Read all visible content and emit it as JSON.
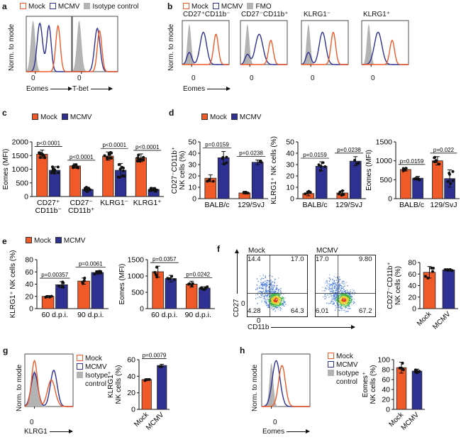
{
  "colors": {
    "mock": "#f05a28",
    "mcmv": "#2e3192",
    "isotype": "#b3b3b3"
  },
  "panels": {
    "a": {
      "label": "a",
      "legend": [
        "Mock",
        "MCMV",
        "Isotype control"
      ],
      "ylabel": "Norm. to mode",
      "zero": "0",
      "xlabels": [
        "Eomes",
        "T-bet"
      ]
    },
    "b": {
      "label": "b",
      "legend": [
        "Mock",
        "MCMV",
        "FMO"
      ],
      "ylabel": "Norm. to mode",
      "zero": "0",
      "titles": [
        "CD27⁺CD11b⁻",
        "CD27⁻CD11b⁺",
        "KLRG1⁻",
        "KLRG1⁺"
      ],
      "xlabel": "Eomes"
    },
    "c": {
      "label": "c",
      "legend": [
        "Mock",
        "MCMV"
      ]
    },
    "d": {
      "label": "d",
      "legend": [
        "Mock",
        "MCMV"
      ]
    },
    "e": {
      "label": "e",
      "legend": [
        "Mock",
        "MCMV"
      ]
    },
    "f": {
      "label": "f",
      "plots": [
        {
          "title": "Mock",
          "quadrants": {
            "ul": "14.4",
            "ur": "17.0",
            "ll": "4.28",
            "lr": "64.3"
          }
        },
        {
          "title": "MCMV",
          "quadrants": {
            "ul": "17.0",
            "ur": "9.80",
            "ll": "6.01",
            "lr": "67.2"
          }
        }
      ],
      "ylabel": "CD27",
      "xlabel": "CD11b",
      "zero": "0"
    },
    "g": {
      "label": "g",
      "legend": [
        "Mock",
        "MCMV",
        "Isotype",
        "control"
      ],
      "ylabel": "Norm. to mode",
      "zero": "0",
      "xlabel": "KLRG1"
    },
    "h": {
      "label": "h",
      "legend": [
        "Mock",
        "MCMV",
        "Isotype",
        "control"
      ],
      "ylabel": "Norm. to mode",
      "zero": "0",
      "xlabel": "Eomes"
    }
  },
  "chart_data": [
    {
      "id": "c",
      "type": "bar",
      "ylabel": "Eomes (MFI)",
      "ylim": [
        0,
        2000
      ],
      "yticks": [
        0,
        500,
        1000,
        1500,
        2000
      ],
      "categories": [
        [
          "CD27⁺",
          "CD11b⁻"
        ],
        [
          "CD27⁻",
          "CD11b⁺"
        ],
        [
          "KLRG1⁻"
        ],
        [
          "KLRG1⁺"
        ]
      ],
      "series": [
        {
          "name": "Mock",
          "values": [
            1550,
            1120,
            1480,
            1420
          ],
          "errors": [
            150,
            80,
            150,
            140
          ],
          "n": [
            9,
            9,
            9,
            9
          ]
        },
        {
          "name": "MCMV",
          "values": [
            960,
            260,
            960,
            260
          ],
          "errors": [
            130,
            80,
            250,
            70
          ],
          "n": [
            9,
            9,
            10,
            9
          ]
        }
      ],
      "pvalues": [
        "p<0.0001",
        "p<0.0001",
        "p<0.0001",
        "p<0.0001"
      ]
    },
    {
      "id": "d1",
      "type": "bar",
      "ylabel": [
        "CD27⁻CD11b⁺",
        "NK cells (%)"
      ],
      "ylim": [
        0,
        50
      ],
      "yticks": [
        0,
        10,
        20,
        30,
        40,
        50
      ],
      "categories": [
        [
          "BALB/c"
        ],
        [
          "129/SvJ"
        ]
      ],
      "series": [
        {
          "name": "Mock",
          "values": [
            18,
            5
          ],
          "errors": [
            3,
            0.8
          ],
          "n": [
            4,
            5
          ]
        },
        {
          "name": "MCMV",
          "values": [
            36,
            32
          ],
          "errors": [
            5.5,
            2
          ],
          "n": [
            5,
            3
          ]
        }
      ],
      "pvalues": [
        "p=0.0159",
        "p=0.0238"
      ]
    },
    {
      "id": "d2",
      "type": "bar",
      "ylabel": [
        "KLRG1⁺ NK cells (%)"
      ],
      "ylim": [
        0,
        50
      ],
      "yticks": [
        0,
        10,
        20,
        30,
        40,
        50
      ],
      "categories": [
        [
          "BALB/c"
        ],
        [
          "129/SvJ"
        ]
      ],
      "series": [
        {
          "name": "Mock",
          "values": [
            4.5,
            5
          ],
          "errors": [
            2,
            2
          ],
          "n": [
            4,
            6
          ]
        },
        {
          "name": "MCMV",
          "values": [
            28.5,
            33
          ],
          "errors": [
            4,
            4
          ],
          "n": [
            5,
            3
          ]
        }
      ],
      "pvalues": [
        "p=0.0159",
        "p=0.0238"
      ]
    },
    {
      "id": "d3",
      "type": "bar",
      "ylabel": [
        "Eomes (MFI)"
      ],
      "ylim": [
        0,
        1500
      ],
      "yticks": [
        0,
        500,
        1000,
        1500
      ],
      "categories": [
        [
          "BALB/c"
        ],
        [
          "129/SvJ"
        ]
      ],
      "series": [
        {
          "name": "Mock",
          "values": [
            770,
            1000
          ],
          "errors": [
            40,
            110
          ],
          "n": [
            4,
            6
          ]
        },
        {
          "name": "MCMV",
          "values": [
            540,
            530
          ],
          "errors": [
            50,
            230
          ],
          "n": [
            5,
            6
          ]
        }
      ],
      "pvalues": [
        "p=0.0159",
        "p=0.022"
      ]
    },
    {
      "id": "e1",
      "type": "bar",
      "ylabel": [
        "KLRG1⁺ NK cells (%)"
      ],
      "ylim": [
        0,
        80
      ],
      "yticks": [
        0,
        20,
        40,
        60,
        80
      ],
      "categories": [
        [
          "60 d.p.i."
        ],
        [
          "90 d.p.i."
        ]
      ],
      "series": [
        {
          "name": "Mock",
          "values": [
            20,
            45
          ],
          "errors": [
            1.5,
            5
          ],
          "n": [
            4,
            4
          ]
        },
        {
          "name": "MCMV",
          "values": [
            39,
            59
          ],
          "errors": [
            5,
            3
          ],
          "n": [
            5,
            7
          ]
        }
      ],
      "pvalues": [
        "p=0.00357",
        "p=0.0061"
      ]
    },
    {
      "id": "e2",
      "type": "bar",
      "ylabel": [
        "Eomes (MFI)"
      ],
      "ylim": [
        0,
        1500
      ],
      "yticks": [
        0,
        500,
        1000,
        1500
      ],
      "categories": [
        [
          "60 d.p.i."
        ],
        [
          "90 d.p.i."
        ]
      ],
      "series": [
        {
          "name": "Mock",
          "values": [
            1130,
            750
          ],
          "errors": [
            170,
            90
          ],
          "n": [
            4,
            4
          ]
        },
        {
          "name": "MCMV",
          "values": [
            920,
            630
          ],
          "errors": [
            100,
            40
          ],
          "n": [
            5,
            6
          ]
        }
      ],
      "pvalues": [
        "p=0.0357",
        "p=0.0242"
      ]
    },
    {
      "id": "f",
      "type": "bar",
      "ylabel": [
        "CD27⁻CD11b⁺",
        "NK cells (%)"
      ],
      "ylim": [
        0,
        80
      ],
      "yticks": [
        0,
        20,
        40,
        60,
        80
      ],
      "categories": [
        [
          "Mock"
        ],
        [
          "MCMV"
        ]
      ],
      "rotate_labels": true,
      "series": [
        {
          "name": "Mock",
          "values": [
            63,
            null
          ],
          "errors": [
            10,
            null
          ],
          "n": [
            5,
            0
          ]
        },
        {
          "name": "MCMV",
          "values": [
            null,
            67
          ],
          "errors": [
            null,
            2
          ],
          "n": [
            0,
            5
          ]
        }
      ],
      "pvalues": []
    },
    {
      "id": "g",
      "type": "bar",
      "ylabel": [
        "KLRG1⁺",
        "NK cells (%)"
      ],
      "ylim": [
        0,
        60
      ],
      "yticks": [
        0,
        20,
        40,
        60
      ],
      "categories": [
        [
          "Mock"
        ],
        [
          "MCMV"
        ]
      ],
      "rotate_labels": true,
      "series": [
        {
          "name": "Mock",
          "values": [
            36,
            null
          ],
          "errors": [
            1,
            null
          ],
          "n": [
            5,
            0
          ]
        },
        {
          "name": "MCMV",
          "values": [
            null,
            53
          ],
          "errors": [
            null,
            1.5
          ],
          "n": [
            0,
            5
          ]
        }
      ],
      "pvalues": [
        "p=0.0079"
      ],
      "pvalue_span": "all"
    },
    {
      "id": "h",
      "type": "bar",
      "ylabel": [
        "Eomes⁺",
        "NK cells (%)"
      ],
      "ylim": [
        0,
        100
      ],
      "yticks": [
        0,
        20,
        40,
        60,
        80,
        100
      ],
      "categories": [
        [
          "Mock"
        ],
        [
          "MCMV"
        ]
      ],
      "rotate_labels": true,
      "series": [
        {
          "name": "Mock",
          "values": [
            84,
            null
          ],
          "errors": [
            11,
            null
          ],
          "n": [
            5,
            0
          ]
        },
        {
          "name": "MCMV",
          "values": [
            null,
            77
          ],
          "errors": [
            null,
            4
          ],
          "n": [
            0,
            5
          ]
        }
      ],
      "pvalues": []
    }
  ]
}
